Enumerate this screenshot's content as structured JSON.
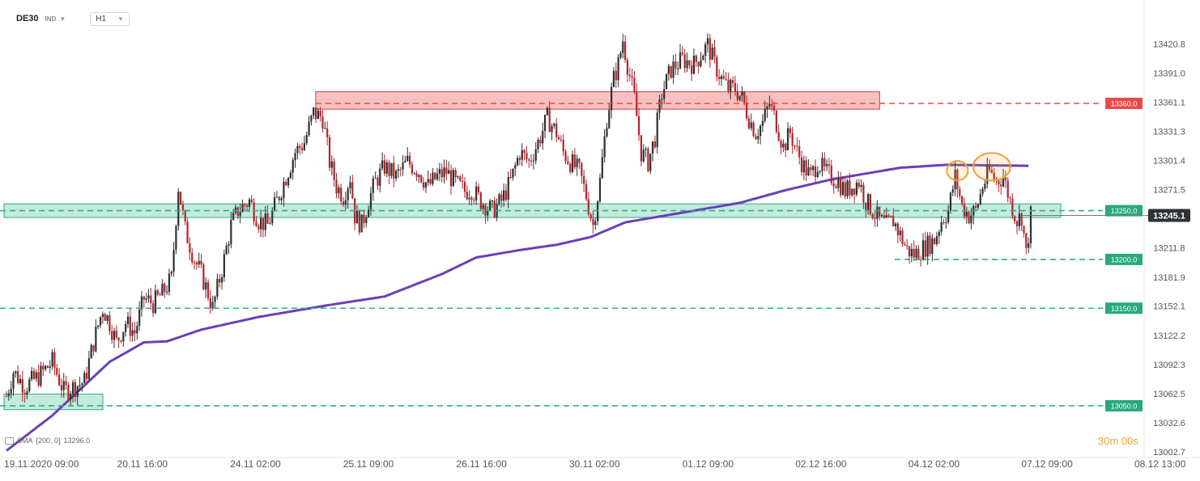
{
  "header": {
    "symbol": "DE30",
    "exchange": "IND",
    "timeframe": "H1"
  },
  "indicator": {
    "label": "SMA",
    "params": "[200,  0]",
    "value": "13296.0"
  },
  "countdown": {
    "minutes": "30",
    "m": "m",
    "seconds": "00",
    "s": "s"
  },
  "colors": {
    "up_candle": "#2f2f2f",
    "down_candle": "#b2242a",
    "sma": "#6b3fb8",
    "resistance": "#e84a4a",
    "support": "#2bb084",
    "highlight_circle": "#f0a030",
    "current_price_bg": "#2e3236"
  },
  "chart_data": {
    "type": "candlestick",
    "y_axis": {
      "ticks": [
        "13420.8",
        "13391.0",
        "13361.1",
        "13331.3",
        "13301.4",
        "13271.5",
        "13211.8",
        "13181.9",
        "13152.1",
        "13122.2",
        "13092.3",
        "13062.5",
        "13032.6",
        "13002.7"
      ],
      "range": [
        13000,
        13440
      ]
    },
    "x_axis": {
      "ticks": [
        "19.11.2020  09:00",
        "20.11  16:00",
        "24.11  02:00",
        "25.11  09:00",
        "26.11  16:00",
        "30.11  02:00",
        "01.12  09:00",
        "02.12  16:00",
        "04.12  02:00",
        "07.12  09:00",
        "08.12  13:00"
      ]
    },
    "current_price": "13245.1",
    "levels": [
      {
        "label": "13360.0",
        "value": 13360,
        "kind": "resistance"
      },
      {
        "label": "13250.0",
        "value": 13250,
        "kind": "support"
      },
      {
        "label": "13200.0",
        "value": 13200,
        "kind": "support"
      },
      {
        "label": "13150.0",
        "value": 13150,
        "kind": "support"
      },
      {
        "label": "13050.0",
        "value": 13050,
        "kind": "support"
      }
    ],
    "zones": [
      {
        "kind": "resistance",
        "low": 13354,
        "high": 13372,
        "from_bar": 136,
        "to_bar": 380
      },
      {
        "kind": "support",
        "low": 13243,
        "high": 13257,
        "from_bar": 0,
        "to_bar": 459
      },
      {
        "kind": "support",
        "low": 13046,
        "high": 13062,
        "from_bar": 0,
        "to_bar": 41
      }
    ],
    "sma_series": {
      "name": "SMA",
      "anchors": [
        [
          0,
          13004
        ],
        [
          20,
          13040
        ],
        [
          45,
          13095
        ],
        [
          60,
          13115
        ],
        [
          70,
          13116
        ],
        [
          85,
          13128
        ],
        [
          110,
          13141
        ],
        [
          140,
          13153
        ],
        [
          165,
          13162
        ],
        [
          190,
          13185
        ],
        [
          205,
          13202
        ],
        [
          225,
          13210
        ],
        [
          240,
          13215
        ],
        [
          255,
          13223
        ],
        [
          270,
          13238
        ],
        [
          300,
          13250
        ],
        [
          320,
          13258
        ],
        [
          340,
          13271
        ],
        [
          360,
          13282
        ],
        [
          390,
          13294
        ],
        [
          410,
          13297
        ],
        [
          446,
          13296
        ]
      ]
    },
    "closes": {
      "anchors": [
        [
          0,
          13060
        ],
        [
          3,
          13085
        ],
        [
          8,
          13070
        ],
        [
          14,
          13080
        ],
        [
          20,
          13095
        ],
        [
          25,
          13065
        ],
        [
          30,
          13070
        ],
        [
          34,
          13075
        ],
        [
          38,
          13115
        ],
        [
          42,
          13150
        ],
        [
          45,
          13135
        ],
        [
          48,
          13115
        ],
        [
          52,
          13135
        ],
        [
          56,
          13125
        ],
        [
          60,
          13160
        ],
        [
          64,
          13155
        ],
        [
          68,
          13165
        ],
        [
          72,
          13180
        ],
        [
          75,
          13275
        ],
        [
          78,
          13230
        ],
        [
          82,
          13200
        ],
        [
          85,
          13185
        ],
        [
          88,
          13165
        ],
        [
          90,
          13150
        ],
        [
          92,
          13170
        ],
        [
          95,
          13200
        ],
        [
          98,
          13235
        ],
        [
          101,
          13250
        ],
        [
          106,
          13260
        ],
        [
          110,
          13240
        ],
        [
          114,
          13235
        ],
        [
          118,
          13260
        ],
        [
          122,
          13285
        ],
        [
          126,
          13310
        ],
        [
          130,
          13320
        ],
        [
          134,
          13350
        ],
        [
          138,
          13345
        ],
        [
          141,
          13300
        ],
        [
          144,
          13275
        ],
        [
          147,
          13265
        ],
        [
          150,
          13285
        ],
        [
          152,
          13245
        ],
        [
          155,
          13235
        ],
        [
          158,
          13260
        ],
        [
          161,
          13280
        ],
        [
          165,
          13295
        ],
        [
          170,
          13285
        ],
        [
          175,
          13300
        ],
        [
          180,
          13290
        ],
        [
          184,
          13275
        ],
        [
          188,
          13285
        ],
        [
          192,
          13290
        ],
        [
          196,
          13278
        ],
        [
          200,
          13270
        ],
        [
          203,
          13272
        ],
        [
          207,
          13260
        ],
        [
          212,
          13250
        ],
        [
          216,
          13260
        ],
        [
          220,
          13280
        ],
        [
          224,
          13310
        ],
        [
          228,
          13300
        ],
        [
          232,
          13320
        ],
        [
          236,
          13345
        ],
        [
          240,
          13330
        ],
        [
          243,
          13310
        ],
        [
          246,
          13300
        ],
        [
          250,
          13290
        ],
        [
          253,
          13265
        ],
        [
          256,
          13235
        ],
        [
          259,
          13280
        ],
        [
          262,
          13345
        ],
        [
          265,
          13385
        ],
        [
          267,
          13400
        ],
        [
          269,
          13425
        ],
        [
          271,
          13400
        ],
        [
          274,
          13365
        ],
        [
          277,
          13310
        ],
        [
          280,
          13300
        ],
        [
          283,
          13325
        ],
        [
          286,
          13370
        ],
        [
          290,
          13395
        ],
        [
          295,
          13405
        ],
        [
          300,
          13400
        ],
        [
          303,
          13410
        ],
        [
          306,
          13420
        ],
        [
          309,
          13400
        ],
        [
          312,
          13385
        ],
        [
          315,
          13375
        ],
        [
          318,
          13375
        ],
        [
          321,
          13365
        ],
        [
          324,
          13345
        ],
        [
          327,
          13330
        ],
        [
          330,
          13340
        ],
        [
          333,
          13360
        ],
        [
          336,
          13340
        ],
        [
          339,
          13315
        ],
        [
          342,
          13330
        ],
        [
          345,
          13310
        ],
        [
          348,
          13295
        ],
        [
          351,
          13285
        ],
        [
          354,
          13300
        ],
        [
          357,
          13290
        ],
        [
          360,
          13285
        ],
        [
          363,
          13280
        ],
        [
          366,
          13270
        ],
        [
          369,
          13275
        ],
        [
          372,
          13280
        ],
        [
          375,
          13260
        ],
        [
          378,
          13250
        ],
        [
          381,
          13240
        ],
        [
          384,
          13235
        ],
        [
          387,
          13240
        ],
        [
          390,
          13225
        ],
        [
          393,
          13210
        ],
        [
          396,
          13205
        ],
        [
          399,
          13210
        ],
        [
          402,
          13215
        ],
        [
          405,
          13220
        ],
        [
          408,
          13240
        ],
        [
          411,
          13250
        ],
        [
          414,
          13285
        ],
        [
          417,
          13255
        ],
        [
          420,
          13245
        ],
        [
          423,
          13250
        ],
        [
          426,
          13275
        ],
        [
          429,
          13290
        ],
        [
          432,
          13280
        ],
        [
          435,
          13285
        ],
        [
          438,
          13260
        ],
        [
          441,
          13240
        ],
        [
          443,
          13245
        ],
        [
          445,
          13205
        ],
        [
          447,
          13245
        ]
      ]
    },
    "highlights": [
      {
        "bar": 415,
        "value": 13291,
        "rx": 13,
        "ry": 12
      },
      {
        "bar": 430,
        "value": 13295,
        "rx": 23,
        "ry": 17
      }
    ]
  }
}
